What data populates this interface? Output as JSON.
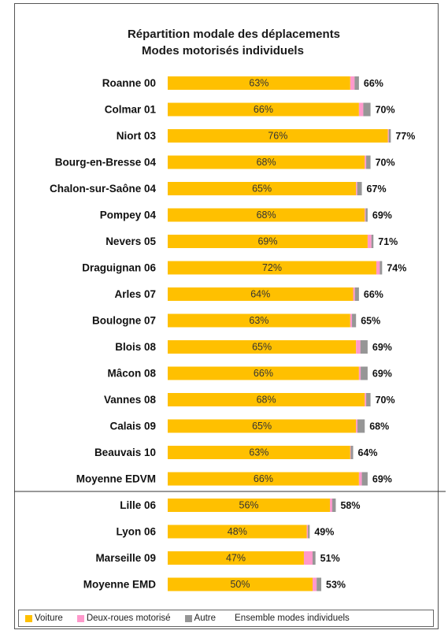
{
  "colors": {
    "voiture": "#FFC000",
    "deux_roues": "#FF99CC",
    "autre": "#969696"
  },
  "chart_data": {
    "type": "bar",
    "orientation": "horizontal",
    "stacked": true,
    "title": "Répartition modale des déplacements",
    "subtitle": "Modes motorisés individuels",
    "xlim": [
      0,
      80
    ],
    "grid": false,
    "legend_position": "bottom",
    "groups": [
      {
        "name": "EDVM",
        "categories": [
          "Roanne 00",
          "Colmar 01",
          "Niort 03",
          "Bourg-en-Bresse 04",
          "Chalon-sur-Saône 04",
          "Pompey 04",
          "Nevers 05",
          "Draguignan 06",
          "Arles 07",
          "Boulogne 07",
          "Blois 08",
          "Mâcon 08",
          "Vannes 08",
          "Calais 09",
          "Beauvais 10",
          "Moyenne EDVM"
        ],
        "voiture": [
          63,
          66,
          76,
          68,
          65,
          68,
          69,
          72,
          64,
          63,
          65,
          66,
          68,
          65,
          63,
          66
        ],
        "deux_roues": [
          1.5,
          1.5,
          0.3,
          0.5,
          0.4,
          0.3,
          1.3,
          1.2,
          0.6,
          0.6,
          1.5,
          0.6,
          0.5,
          0.5,
          0.2,
          1.0
        ],
        "autre": [
          1.5,
          2.5,
          0.7,
          1.5,
          1.6,
          0.7,
          0.7,
          0.8,
          1.4,
          1.4,
          2.5,
          2.4,
          1.5,
          2.5,
          0.8,
          2.0
        ],
        "totals": [
          66,
          70,
          77,
          70,
          67,
          69,
          71,
          74,
          66,
          65,
          69,
          69,
          70,
          68,
          64,
          69
        ]
      },
      {
        "name": "EMD",
        "categories": [
          "Lille 06",
          "Lyon 06",
          "Marseille 09",
          "Moyenne EMD"
        ],
        "voiture": [
          56,
          48,
          47,
          50
        ],
        "deux_roues": [
          0.8,
          0.4,
          3.0,
          1.4
        ],
        "autre": [
          1.2,
          0.6,
          1.0,
          1.6
        ],
        "totals": [
          58,
          49,
          51,
          53
        ]
      }
    ],
    "series": [
      {
        "name": "Voiture"
      },
      {
        "name": "Deux-roues motorisé"
      },
      {
        "name": "Autre"
      },
      {
        "name": "Ensemble modes individuels"
      }
    ]
  }
}
